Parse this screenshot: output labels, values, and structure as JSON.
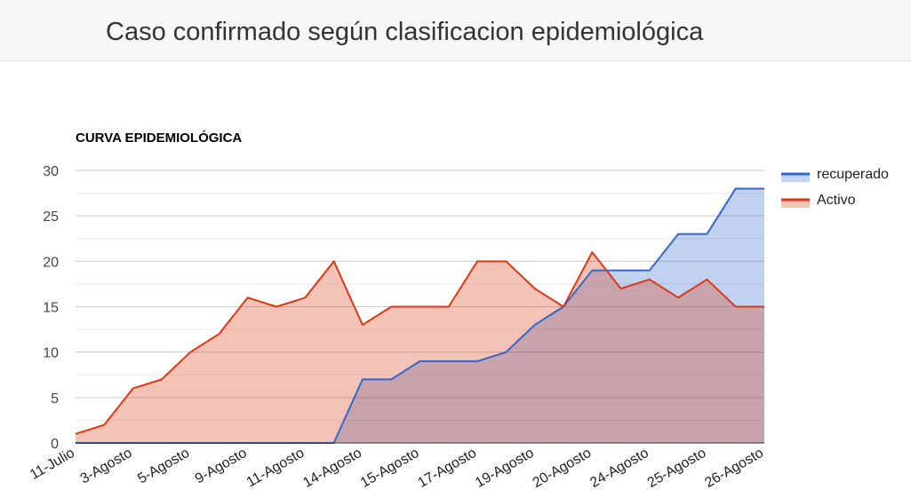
{
  "header": {
    "title": "Caso confirmado según clasificacion epidemiológica"
  },
  "chart_data": {
    "type": "area",
    "title": "CURVA EPIDEMIOLÓGICA",
    "ylim": [
      0,
      30
    ],
    "yticks": [
      "0",
      "5",
      "10",
      "15",
      "20",
      "25",
      "30"
    ],
    "grid": true,
    "legend_position": "right",
    "x_tick_labels": [
      "11-Julio",
      "3-Agosto",
      "5-Agosto",
      "9-Agosto",
      "11-Agosto",
      "14-Agosto",
      "15-Agosto",
      "17-Agosto",
      "19-Agosto",
      "20-Agosto",
      "24-Agosto",
      "25-Agosto",
      "26-Agosto"
    ],
    "series": [
      {
        "name": "recuperado",
        "color": "#3366cc",
        "values": [
          0,
          0,
          0,
          0,
          0,
          0,
          0,
          0,
          0,
          0,
          7,
          7,
          9,
          9,
          9,
          10,
          13,
          15,
          19,
          19,
          19,
          23,
          23,
          28,
          28
        ]
      },
      {
        "name": "Activo",
        "color": "#dc3912",
        "values": [
          1,
          2,
          6,
          7,
          10,
          12,
          16,
          15,
          16,
          20,
          13,
          15,
          15,
          15,
          20,
          20,
          17,
          15,
          21,
          17,
          18,
          16,
          18,
          15,
          15
        ]
      }
    ]
  }
}
